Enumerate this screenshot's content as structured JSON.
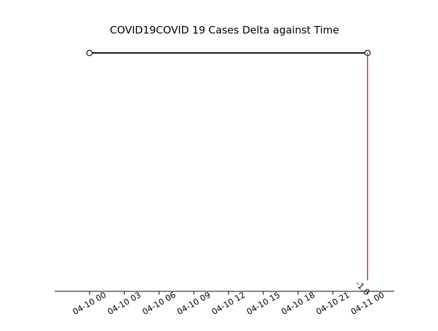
{
  "chart_data": {
    "type": "line",
    "title": "COVID19COVID 19 Cases Delta against Time",
    "xlabel": "",
    "ylabel": "",
    "x_ticks": [
      "04-10 00",
      "04-10 03",
      "04-10 06",
      "04-10 09",
      "04-10 12",
      "04-10 15",
      "04-10 18",
      "04-10 21",
      "04-11 00"
    ],
    "x_tick_hours": [
      0,
      3,
      6,
      9,
      12,
      15,
      18,
      21,
      24
    ],
    "xlim_hours": [
      -3,
      26.3
    ],
    "series": [
      {
        "points": [
          {
            "x": "04-10 00",
            "x_hours": 0,
            "y": 0
          },
          {
            "x": "04-11 00",
            "x_hours": 24,
            "y": 0
          }
        ],
        "color": "#000000",
        "marker": "circle-open"
      }
    ],
    "annotations": [
      {
        "type": "vertical-line",
        "x": "04-11 00",
        "x_hours": 24,
        "color": "#d62728",
        "label": "-1.0"
      }
    ],
    "ylim": [
      -1.0,
      0.05
    ],
    "grid": false
  }
}
